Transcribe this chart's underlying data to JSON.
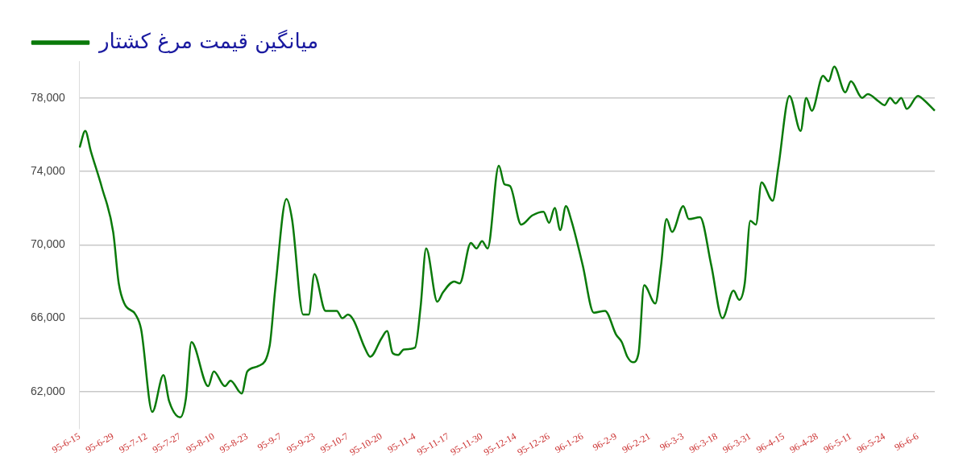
{
  "chart_data": {
    "type": "line",
    "legend": "top left",
    "grid": "y",
    "categories": [
      "95-6-15",
      null,
      null,
      null,
      null,
      null,
      "95-6-29",
      null,
      null,
      null,
      null,
      null,
      "95-7-12",
      null,
      null,
      null,
      null,
      null,
      "95-7-27",
      null,
      null,
      null,
      null,
      null,
      "95-8-10",
      null,
      null,
      null,
      null,
      null,
      "95-8-23",
      null,
      null,
      null,
      null,
      null,
      "95-9-7",
      null,
      null,
      null,
      null,
      null,
      "95-9-23",
      null,
      null,
      null,
      null,
      null,
      "95-10-7",
      null,
      null,
      null,
      null,
      null,
      "95-10-20",
      null,
      null,
      null,
      null,
      null,
      "95-11-4",
      null,
      null,
      null,
      null,
      null,
      "95-11-17",
      null,
      null,
      null,
      null,
      null,
      "95-11-30",
      null,
      null,
      null,
      null,
      null,
      "95-12-14",
      null,
      null,
      null,
      null,
      null,
      "95-12-26",
      null,
      null,
      null,
      null,
      null,
      "96-1-26",
      null,
      null,
      null,
      null,
      null,
      "96-2-9",
      null,
      null,
      null,
      null,
      null,
      "96-2-21",
      null,
      null,
      null,
      null,
      null,
      "96-3-3",
      null,
      null,
      null,
      null,
      null,
      "96-3-18",
      null,
      null,
      null,
      null,
      null,
      "96-3-31",
      null,
      null,
      null,
      null,
      null,
      "96-4-15",
      null,
      null,
      null,
      null,
      null,
      "96-4-28",
      null,
      null,
      null,
      null,
      null,
      "96-5-11",
      null,
      null,
      null,
      null,
      null,
      "96-5-24",
      null,
      null,
      null,
      null,
      null,
      "96-6-6",
      null,
      null,
      null
    ],
    "series": [
      {
        "name": "میانگین قیمت مرغ کشتار",
        "color": "#0a7a0a",
        "values": [
          75300,
          76200,
          75100,
          null,
          73100,
          null,
          70700,
          67900,
          66800,
          null,
          66200,
          65400,
          null,
          60900,
          null,
          62900,
          61500,
          null,
          60600,
          61600,
          64700,
          null,
          null,
          62300,
          63100,
          null,
          62300,
          62600,
          null,
          61900,
          63100,
          null,
          63400,
          null,
          64500,
          67600,
          null,
          72500,
          71400,
          null,
          66200,
          66200,
          68400,
          null,
          66400,
          null,
          66400,
          66000,
          66200,
          65900,
          null,
          64400,
          63900,
          null,
          64900,
          65300,
          64100,
          64000,
          64300,
          null,
          64400,
          66600,
          69800,
          null,
          66900,
          67400,
          null,
          68000,
          67900,
          null,
          70100,
          69800,
          70200,
          69800,
          null,
          74300,
          73300,
          73200,
          null,
          71100,
          null,
          71600,
          null,
          71800,
          71200,
          72000,
          70800,
          72100,
          71300,
          null,
          68900,
          null,
          66300,
          null,
          66400,
          null,
          65100,
          64700,
          63900,
          63600,
          64100,
          67800,
          null,
          66800,
          68800,
          71400,
          70700,
          null,
          72100,
          71400,
          null,
          71500,
          null,
          68900,
          null,
          66000,
          null,
          67500,
          67000,
          67900,
          71300,
          71100,
          73400,
          null,
          72400,
          74200,
          null,
          78100,
          null,
          76200,
          78000,
          77300,
          null,
          79200,
          78900,
          79700,
          null,
          78300,
          78900,
          null,
          78000,
          78200,
          null,
          77800,
          77600,
          78000,
          77700,
          78000,
          77400,
          null,
          78100,
          77900,
          null,
          77300
        ]
      }
    ],
    "ylim": [
      60000,
      80000
    ],
    "yticks": [
      {
        "value": 62000,
        "label": "62,000"
      },
      {
        "value": 66000,
        "label": "66,000"
      },
      {
        "value": 70000,
        "label": "70,000"
      },
      {
        "value": 74000,
        "label": "74,000"
      },
      {
        "value": 78000,
        "label": "78,000"
      }
    ]
  }
}
